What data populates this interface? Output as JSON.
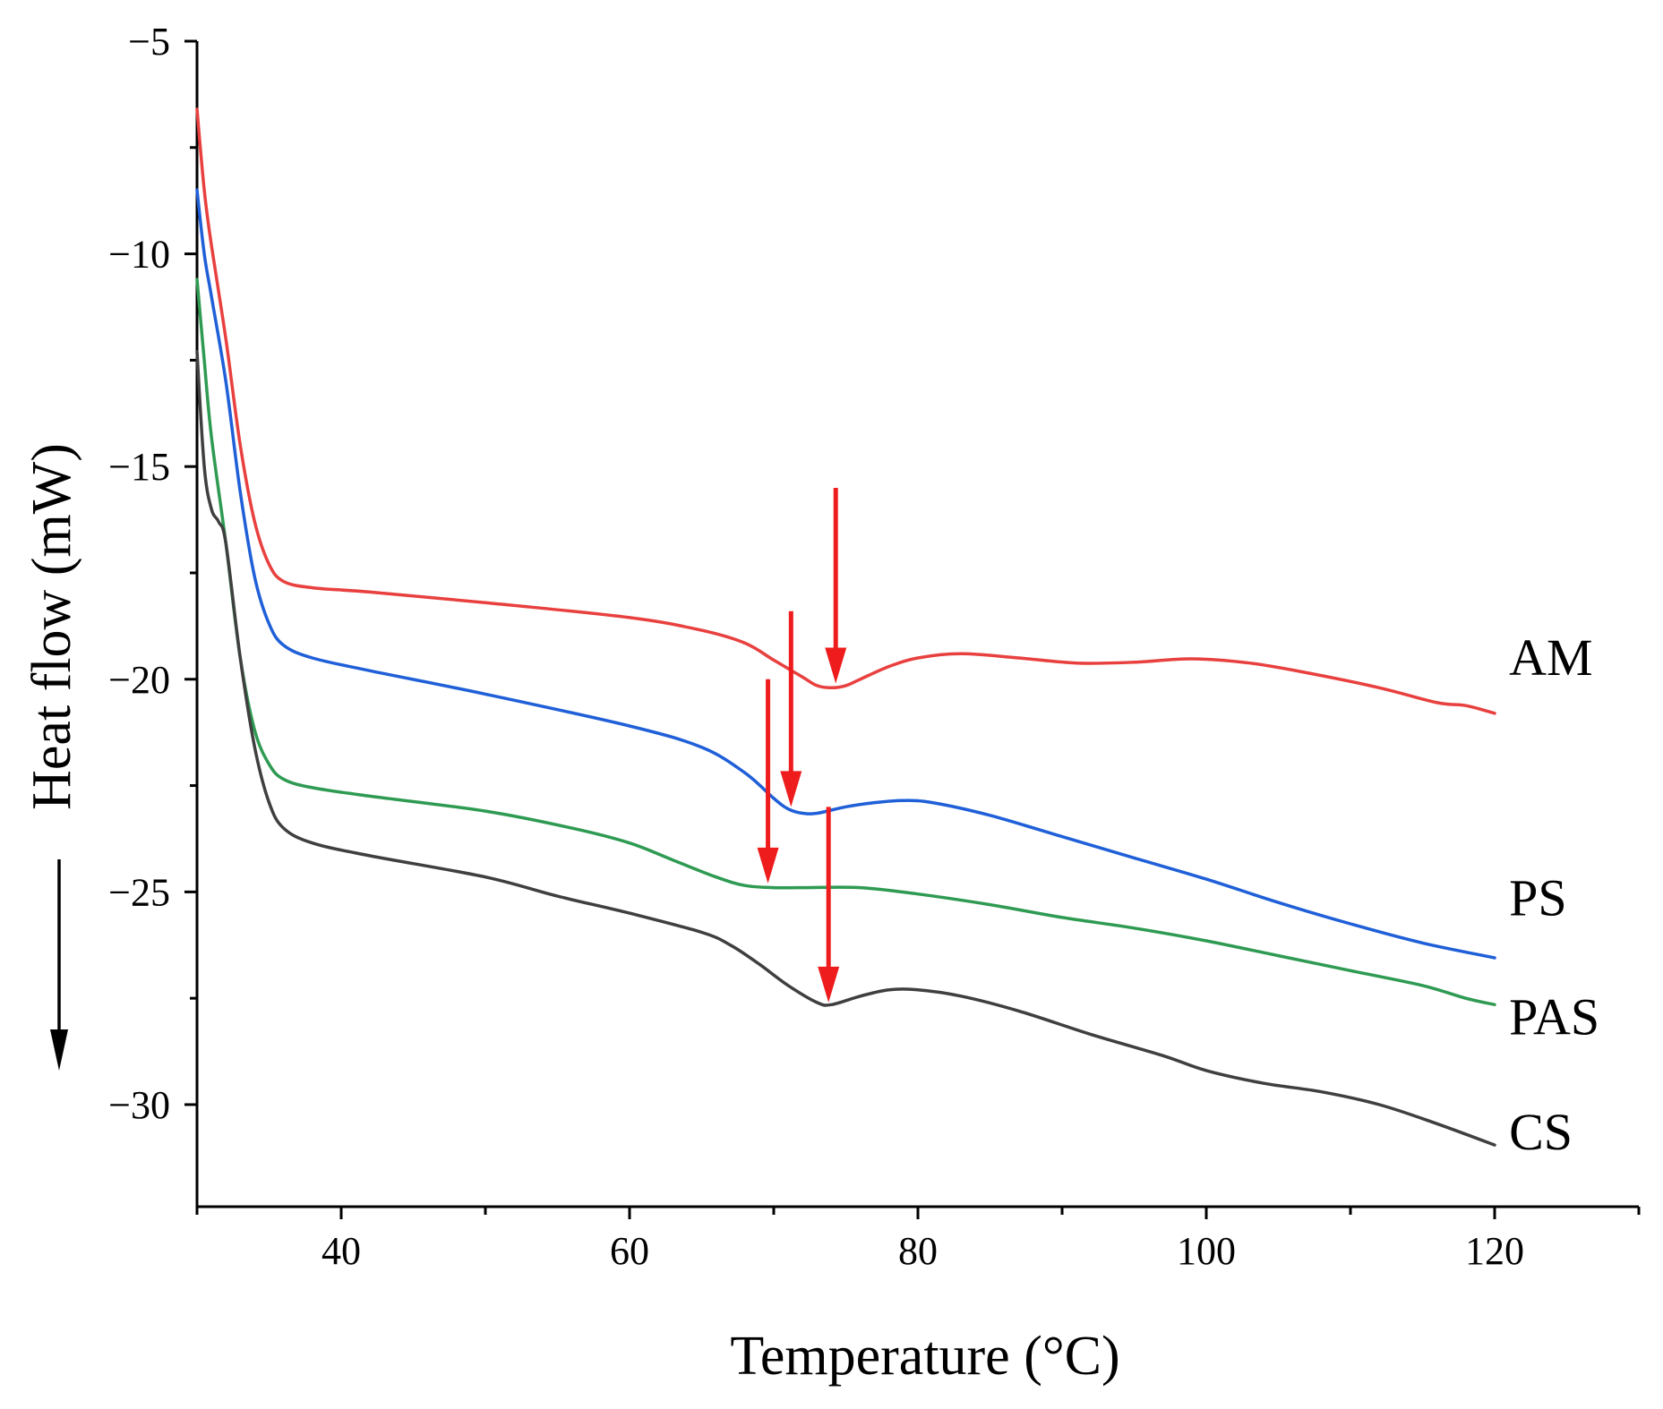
{
  "chart_data": {
    "type": "line",
    "xlabel": "Temperature (°C)",
    "ylabel": "Heat flow (mW)",
    "xlim": [
      30,
      130
    ],
    "ylim": [
      -32.4,
      -5
    ],
    "xticks": [
      40,
      60,
      80,
      100,
      120
    ],
    "x_minor_ticks": [
      30,
      50,
      70,
      90,
      110,
      130
    ],
    "yticks": [
      -5,
      -10,
      -15,
      -20,
      -25,
      -30
    ],
    "ytick_labels": [
      "−5",
      "−10",
      "−15",
      "−20",
      "−25",
      "−30"
    ],
    "grid": false,
    "exo_direction": "down",
    "series": [
      {
        "name": "AM",
        "color": "#e8403e",
        "points": [
          [
            30,
            -6.6
          ],
          [
            30.5,
            -8.5
          ],
          [
            31,
            -9.8
          ],
          [
            32,
            -12.0
          ],
          [
            33,
            -14.5
          ],
          [
            34,
            -16.3
          ],
          [
            35,
            -17.3
          ],
          [
            36,
            -17.7
          ],
          [
            38,
            -17.85
          ],
          [
            42,
            -17.95
          ],
          [
            50,
            -18.2
          ],
          [
            60,
            -18.55
          ],
          [
            65,
            -18.85
          ],
          [
            68,
            -19.15
          ],
          [
            70,
            -19.55
          ],
          [
            72,
            -19.95
          ],
          [
            73,
            -20.15
          ],
          [
            74,
            -20.2
          ],
          [
            75,
            -20.15
          ],
          [
            76,
            -20.0
          ],
          [
            78,
            -19.7
          ],
          [
            80,
            -19.5
          ],
          [
            83,
            -19.4
          ],
          [
            87,
            -19.5
          ],
          [
            91,
            -19.62
          ],
          [
            95,
            -19.6
          ],
          [
            99,
            -19.52
          ],
          [
            103,
            -19.62
          ],
          [
            107,
            -19.85
          ],
          [
            112,
            -20.2
          ],
          [
            116,
            -20.55
          ],
          [
            118,
            -20.62
          ],
          [
            120,
            -20.8
          ]
        ]
      },
      {
        "name": "PS",
        "color": "#1f5fd8",
        "points": [
          [
            30,
            -8.5
          ],
          [
            30.5,
            -10.0
          ],
          [
            31,
            -11.0
          ],
          [
            32,
            -13.0
          ],
          [
            33,
            -15.6
          ],
          [
            34,
            -17.6
          ],
          [
            35,
            -18.7
          ],
          [
            36,
            -19.2
          ],
          [
            38,
            -19.5
          ],
          [
            42,
            -19.8
          ],
          [
            50,
            -20.35
          ],
          [
            60,
            -21.1
          ],
          [
            65,
            -21.6
          ],
          [
            68,
            -22.2
          ],
          [
            70,
            -22.8
          ],
          [
            71,
            -23.05
          ],
          [
            72,
            -23.15
          ],
          [
            73,
            -23.15
          ],
          [
            75,
            -23.0
          ],
          [
            77,
            -22.9
          ],
          [
            79,
            -22.85
          ],
          [
            81,
            -22.9
          ],
          [
            85,
            -23.2
          ],
          [
            90,
            -23.7
          ],
          [
            95,
            -24.2
          ],
          [
            100,
            -24.7
          ],
          [
            105,
            -25.25
          ],
          [
            110,
            -25.75
          ],
          [
            115,
            -26.2
          ],
          [
            120,
            -26.55
          ]
        ]
      },
      {
        "name": "PAS",
        "color": "#2e9a52",
        "points": [
          [
            30,
            -10.6
          ],
          [
            30.5,
            -12.5
          ],
          [
            31,
            -14.3
          ],
          [
            32,
            -16.8
          ],
          [
            33,
            -19.5
          ],
          [
            34,
            -21.2
          ],
          [
            35,
            -22.0
          ],
          [
            36,
            -22.35
          ],
          [
            38,
            -22.55
          ],
          [
            42,
            -22.75
          ],
          [
            50,
            -23.1
          ],
          [
            56,
            -23.5
          ],
          [
            60,
            -23.85
          ],
          [
            63,
            -24.25
          ],
          [
            66,
            -24.65
          ],
          [
            68,
            -24.85
          ],
          [
            70,
            -24.9
          ],
          [
            72,
            -24.9
          ],
          [
            76,
            -24.9
          ],
          [
            80,
            -25.05
          ],
          [
            85,
            -25.3
          ],
          [
            90,
            -25.6
          ],
          [
            95,
            -25.85
          ],
          [
            100,
            -26.15
          ],
          [
            105,
            -26.5
          ],
          [
            110,
            -26.85
          ],
          [
            115,
            -27.2
          ],
          [
            118,
            -27.5
          ],
          [
            120,
            -27.65
          ]
        ]
      },
      {
        "name": "CS",
        "color": "#3f3f3f",
        "points": [
          [
            30,
            -12.3
          ],
          [
            30.5,
            -15.0
          ],
          [
            31,
            -16.0
          ],
          [
            31.5,
            -16.3
          ],
          [
            32,
            -16.8
          ],
          [
            33,
            -19.5
          ],
          [
            34,
            -21.6
          ],
          [
            35,
            -22.9
          ],
          [
            36,
            -23.5
          ],
          [
            38,
            -23.85
          ],
          [
            42,
            -24.15
          ],
          [
            50,
            -24.65
          ],
          [
            55,
            -25.1
          ],
          [
            60,
            -25.5
          ],
          [
            65,
            -25.95
          ],
          [
            67,
            -26.25
          ],
          [
            69,
            -26.7
          ],
          [
            71,
            -27.2
          ],
          [
            73,
            -27.6
          ],
          [
            74,
            -27.65
          ],
          [
            76,
            -27.45
          ],
          [
            78,
            -27.3
          ],
          [
            80,
            -27.3
          ],
          [
            83,
            -27.45
          ],
          [
            87,
            -27.8
          ],
          [
            92,
            -28.35
          ],
          [
            97,
            -28.85
          ],
          [
            100,
            -29.2
          ],
          [
            104,
            -29.5
          ],
          [
            108,
            -29.7
          ],
          [
            112,
            -30.0
          ],
          [
            116,
            -30.45
          ],
          [
            120,
            -30.95
          ]
        ]
      }
    ],
    "annotations": [
      {
        "type": "arrow",
        "x": 74.3,
        "y_start": -15.5,
        "y_end": -20.1,
        "color": "#ee1c1c"
      },
      {
        "type": "arrow",
        "x": 71.2,
        "y_start": -18.4,
        "y_end": -23.0,
        "color": "#ee1c1c"
      },
      {
        "type": "arrow",
        "x": 69.6,
        "y_start": -20.0,
        "y_end": -24.8,
        "color": "#ee1c1c"
      },
      {
        "type": "arrow",
        "x": 73.8,
        "y_start": -23.0,
        "y_end": -27.6,
        "color": "#ee1c1c"
      }
    ],
    "series_labels": [
      {
        "text": "AM",
        "x": 121,
        "y": -19.9
      },
      {
        "text": "PS",
        "x": 121,
        "y": -25.55
      },
      {
        "text": "PAS",
        "x": 121,
        "y": -28.35
      },
      {
        "text": "CS",
        "x": 121,
        "y": -31.05
      }
    ]
  }
}
